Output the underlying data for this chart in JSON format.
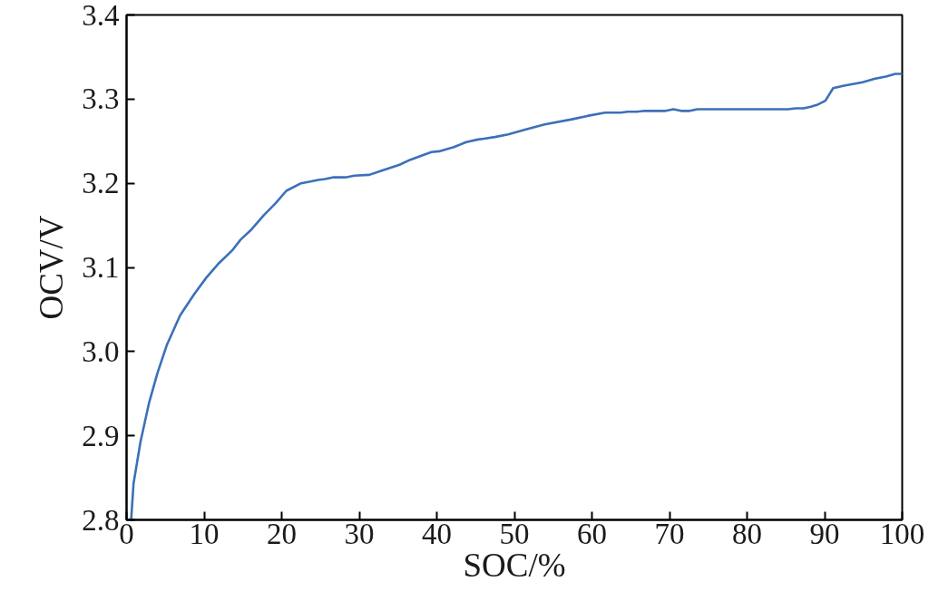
{
  "chart_data": {
    "type": "line",
    "xlabel": "SOC/%",
    "ylabel": "OCV/V",
    "x": [
      0.6,
      0.9,
      1.8,
      2.9,
      4.0,
      5.2,
      6.9,
      8.7,
      10.3,
      11.8,
      13.6,
      14.7,
      16.1,
      17.7,
      19.2,
      20.6,
      22.5,
      23.7,
      24.7,
      25.6,
      26.6,
      28.2,
      29.4,
      31.3,
      32.9,
      35.2,
      36.6,
      39.3,
      40.3,
      42.2,
      43.8,
      45.3,
      46.1,
      47.5,
      49.2,
      51.5,
      53.9,
      57.4,
      59.4,
      61.7,
      63.7,
      64.6,
      65.8,
      66.8,
      69.5,
      70.5,
      71.5,
      72.6,
      73.6,
      76.9,
      85.3,
      86.3,
      87.3,
      88.2,
      89.0,
      90.1,
      91.1,
      92.5,
      94.9,
      96.4,
      98.0,
      99.1,
      100.0
    ],
    "series": [
      {
        "color": "#3c70b8",
        "values": [
          2.801,
          2.843,
          2.893,
          2.939,
          2.975,
          3.008,
          3.043,
          3.068,
          3.088,
          3.104,
          3.12,
          3.133,
          3.145,
          3.162,
          3.176,
          3.191,
          3.2,
          3.202,
          3.204,
          3.205,
          3.207,
          3.207,
          3.209,
          3.21,
          3.215,
          3.222,
          3.228,
          3.237,
          3.238,
          3.243,
          3.249,
          3.252,
          3.253,
          3.255,
          3.258,
          3.264,
          3.27,
          3.276,
          3.28,
          3.284,
          3.284,
          3.285,
          3.285,
          3.286,
          3.286,
          3.288,
          3.286,
          3.286,
          3.288,
          3.288,
          3.288,
          3.289,
          3.289,
          3.291,
          3.293,
          3.298,
          3.313,
          3.316,
          3.32,
          3.324,
          3.327,
          3.33,
          3.33
        ]
      }
    ],
    "xlim": [
      0,
      100
    ],
    "ylim": [
      2.8,
      3.4
    ],
    "xticks": [
      0,
      10,
      20,
      30,
      40,
      50,
      60,
      70,
      80,
      90,
      100
    ],
    "yticks": [
      2.8,
      2.9,
      {
        "value": 3,
        "label": "3.0"
      },
      3.1,
      3.2,
      3.3,
      3.4
    ],
    "line_style": "solid",
    "marker": "none"
  }
}
